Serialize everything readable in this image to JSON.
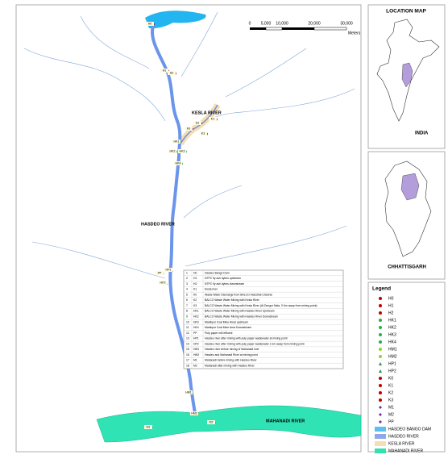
{
  "map": {
    "scale_bar": {
      "ticks": [
        "0",
        "5,000",
        "10,000",
        "20,000",
        "30,000"
      ],
      "unit": "Meters"
    },
    "river_labels": [
      "KESLA RIVER",
      "HASDEO RIVER",
      "MAHANADI RIVER"
    ],
    "stations": [
      "H0",
      "H1",
      "H2",
      "K0",
      "K1",
      "K2",
      "K3",
      "HK1",
      "HK2",
      "HK3",
      "HK4",
      "PP",
      "HP1",
      "HP2",
      "HM1",
      "HM2",
      "M1",
      "M2"
    ]
  },
  "table": {
    "rows": [
      [
        1,
        "H0",
        "Hasdeo Bango Dam"
      ],
      [
        2,
        "H1",
        "NTPC fly ash dykes upstream"
      ],
      [
        3,
        "H2",
        "NTPC fly ash dykes downstream"
      ],
      [
        4,
        "K1",
        "Kesla river"
      ],
      [
        5,
        "K0",
        "Waste Water Discharge from BALCO Industrial Channel"
      ],
      [
        6,
        "K2",
        "BALCO Waste Water Mixing with Kesla River"
      ],
      [
        7,
        "K3",
        "BALCO Waste Water Mixing with Kesla River (At Dengur Nala, 3 Km away from mixing point)"
      ],
      [
        8,
        "HK1",
        "BALCO Waste Water Mixing with Hasdeo River Upstream"
      ],
      [
        9,
        "HK2",
        "BALCO Waste Water Mixing with Hasdeo River Downstream"
      ],
      [
        10,
        "HK3",
        "Manikpur Coal Mine Areal upstream"
      ],
      [
        11,
        "HK4",
        "Manikpur Coal Mine Area Downstream"
      ],
      [
        12,
        "PP",
        "Pulp paper mill effluent"
      ],
      [
        13,
        "HP1",
        "Hasdeo river after mixing with pulp paper wastewater at mixing point"
      ],
      [
        14,
        "HP2",
        "Hasdeo river after mixing with pulp paper wastewater 1 km away from mixing point"
      ],
      [
        15,
        "HM1",
        "Hasdeo river before mixing of Mahanadi river"
      ],
      [
        16,
        "HM2",
        "Hasdeo and Mahanadi River at mixing point"
      ],
      [
        17,
        "M1",
        "Mahanadi before mixing with Hasdeo River"
      ],
      [
        18,
        "M2",
        "Mahanadi after mixing with Hasdeo River"
      ]
    ]
  },
  "location_map": {
    "title": "LOCATION MAP",
    "country": "INDIA",
    "state": "CHHATTISGARH"
  },
  "legend": {
    "title": "Legend",
    "items": [
      {
        "label": "H0",
        "shape": "circle",
        "color": "#c00000"
      },
      {
        "label": "H1",
        "shape": "circle",
        "color": "#c00000"
      },
      {
        "label": "H2",
        "shape": "circle",
        "color": "#c00000"
      },
      {
        "label": "HK1",
        "shape": "circle",
        "color": "#22b14c"
      },
      {
        "label": "HK2",
        "shape": "circle",
        "color": "#22b14c"
      },
      {
        "label": "HK3",
        "shape": "circle",
        "color": "#22b14c"
      },
      {
        "label": "HK4",
        "shape": "circle",
        "color": "#22b14c"
      },
      {
        "label": "HM1",
        "shape": "circle",
        "color": "#9acd32"
      },
      {
        "label": "HM2",
        "shape": "circle",
        "color": "#9acd32"
      },
      {
        "label": "HP1",
        "shape": "triangle",
        "color": "#2e8b57"
      },
      {
        "label": "HP2",
        "shape": "triangle",
        "color": "#2e8b57"
      },
      {
        "label": "K0",
        "shape": "circle",
        "color": "#c00000"
      },
      {
        "label": "K1",
        "shape": "circle",
        "color": "#c00000"
      },
      {
        "label": "K2",
        "shape": "circle",
        "color": "#c00000"
      },
      {
        "label": "K3",
        "shape": "circle",
        "color": "#c00000"
      },
      {
        "label": "M1",
        "shape": "diamond",
        "color": "#7030a0"
      },
      {
        "label": "M2",
        "shape": "diamond",
        "color": "#7030a0"
      },
      {
        "label": "PP",
        "shape": "diamond",
        "color": "#7030a0"
      },
      {
        "label": "HASDEO BANGO DAM",
        "shape": "rect",
        "color": "#5bc0f0"
      },
      {
        "label": "HASDEO RIVER",
        "shape": "rect",
        "color": "#8fa8e8"
      },
      {
        "label": "KESLA RIVER",
        "shape": "rect",
        "color": "#f5deb3"
      },
      {
        "label": "MAHANADI RIVER",
        "shape": "rect",
        "color": "#33e0b0"
      }
    ]
  }
}
